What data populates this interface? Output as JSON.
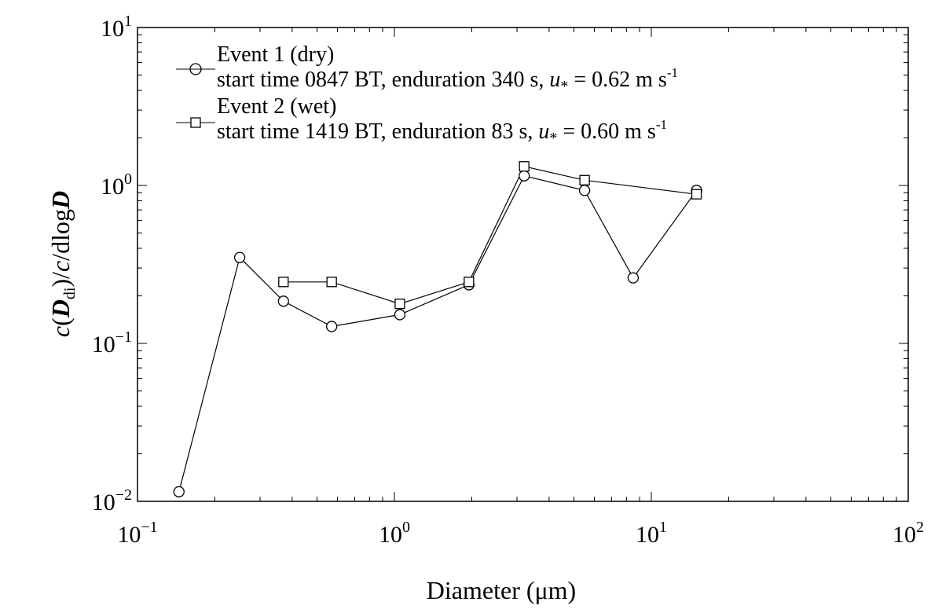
{
  "chart_data": {
    "type": "line",
    "x_scale": "log",
    "y_scale": "log",
    "xlim": [
      0.1,
      100
    ],
    "ylim": [
      0.01,
      10
    ],
    "xlabel": "Diameter (μm)",
    "ylabel": {
      "c1": "c",
      "open1": "(",
      "D": "D",
      "sub": "di",
      "close1": ")",
      "slash1": "/",
      "c2": "c",
      "slash2": "/",
      "dlog": "dlog",
      "D2": "D"
    },
    "x_ticks": [
      {
        "value": 0.1,
        "base": "10",
        "exp": "−1"
      },
      {
        "value": 1,
        "base": "10",
        "exp": "0"
      },
      {
        "value": 10,
        "base": "10",
        "exp": "1"
      },
      {
        "value": 100,
        "base": "10",
        "exp": "2"
      }
    ],
    "y_ticks": [
      {
        "value": 0.01,
        "base": "10",
        "exp": "−2"
      },
      {
        "value": 0.1,
        "base": "10",
        "exp": "−1"
      },
      {
        "value": 1,
        "base": "10",
        "exp": "0"
      },
      {
        "value": 10,
        "base": "10",
        "exp": "1"
      }
    ],
    "grid": false,
    "legend_position": "top-left",
    "series": [
      {
        "name": "Event 1 (dry)",
        "detail": {
          "prefix": "start time ",
          "time": "0847",
          "mid": " BT, enduration ",
          "duration": "340",
          "unit": " s, ",
          "u": "u",
          "ustar": "*",
          "eq": " = 0.62  m s",
          "exp": "-1"
        },
        "marker": "circle",
        "x": [
          0.145,
          0.25,
          0.37,
          0.57,
          1.05,
          1.95,
          3.2,
          5.5,
          8.5,
          15
        ],
        "y": [
          0.0115,
          0.35,
          0.185,
          0.128,
          0.152,
          0.235,
          1.15,
          0.93,
          0.26,
          0.93
        ]
      },
      {
        "name": "Event 2 (wet)",
        "detail": {
          "prefix": "start time ",
          "time": "1419",
          "mid": " BT, enduration ",
          "duration": "83",
          "unit": " s, ",
          "u": "u",
          "ustar": "*",
          "eq": " = 0.60  m s",
          "exp": "-1"
        },
        "marker": "square",
        "x": [
          0.37,
          0.57,
          1.05,
          1.95,
          3.2,
          5.5,
          15
        ],
        "y": [
          0.245,
          0.245,
          0.178,
          0.245,
          1.32,
          1.08,
          0.88
        ]
      }
    ]
  }
}
